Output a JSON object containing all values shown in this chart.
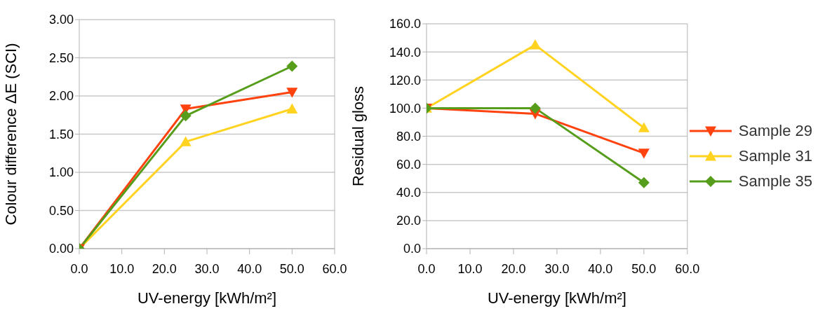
{
  "chart_data": [
    {
      "type": "line",
      "xlabel": "UV-energy [kWh/m²]",
      "ylabel": "Colour difference ΔE (SCI)",
      "x": [
        0,
        25,
        50
      ],
      "series": [
        {
          "color": "#ff420e",
          "marker": "triangle-down",
          "values": [
            0,
            1.83,
            2.05
          ]
        },
        {
          "color": "#ffd320",
          "marker": "triangle",
          "values": [
            0,
            1.4,
            1.83
          ]
        },
        {
          "color": "#579d1c",
          "marker": "diamond",
          "values": [
            0,
            1.74,
            2.39
          ]
        }
      ],
      "xlim": [
        0,
        60
      ],
      "xticks": [
        {
          "value": 0,
          "label": "0.0"
        },
        {
          "value": 10,
          "label": "10.0"
        },
        {
          "value": 20,
          "label": "20.0"
        },
        {
          "value": 30,
          "label": "30.0"
        },
        {
          "value": 40,
          "label": "40.0"
        },
        {
          "value": 50,
          "label": "50.0"
        },
        {
          "value": 60,
          "label": "60.0"
        }
      ],
      "ylim": [
        0,
        3
      ],
      "yticks": [
        {
          "value": 0,
          "label": "0.00"
        },
        {
          "value": 0.5,
          "label": "0.50"
        },
        {
          "value": 1,
          "label": "1.00"
        },
        {
          "value": 1.5,
          "label": "1.50"
        },
        {
          "value": 2,
          "label": "2.00"
        },
        {
          "value": 2.5,
          "label": "2.50"
        },
        {
          "value": 3,
          "label": "3.00"
        }
      ],
      "grid": "y",
      "legend": false
    },
    {
      "type": "line",
      "xlabel": "UV-energy [kWh/m²]",
      "ylabel": "Residual gloss",
      "x": [
        0,
        25,
        50
      ],
      "series": [
        {
          "name": "Sample 29",
          "color": "#ff420e",
          "marker": "triangle-down",
          "values": [
            100,
            96,
            68
          ]
        },
        {
          "name": "Sample 31",
          "color": "#ffd320",
          "marker": "triangle",
          "values": [
            100,
            145,
            86
          ]
        },
        {
          "name": "Sample 35",
          "color": "#579d1c",
          "marker": "diamond",
          "values": [
            100,
            100,
            47
          ]
        }
      ],
      "xlim": [
        0,
        60
      ],
      "xticks": [
        {
          "value": 0,
          "label": "0.0"
        },
        {
          "value": 10,
          "label": "10.0"
        },
        {
          "value": 20,
          "label": "20.0"
        },
        {
          "value": 30,
          "label": "30.0"
        },
        {
          "value": 40,
          "label": "40.0"
        },
        {
          "value": 50,
          "label": "50.0"
        },
        {
          "value": 60,
          "label": "60.0"
        }
      ],
      "ylim": [
        0,
        160
      ],
      "yticks": [
        {
          "value": 0,
          "label": "0.0"
        },
        {
          "value": 20,
          "label": "20.0"
        },
        {
          "value": 40,
          "label": "40.0"
        },
        {
          "value": 60,
          "label": "60.0"
        },
        {
          "value": 80,
          "label": "80.0"
        },
        {
          "value": 100,
          "label": "100.0"
        },
        {
          "value": 120,
          "label": "120.0"
        },
        {
          "value": 140,
          "label": "140.0"
        },
        {
          "value": 160,
          "label": "160.0"
        }
      ],
      "grid": "y",
      "legend": "right"
    }
  ]
}
